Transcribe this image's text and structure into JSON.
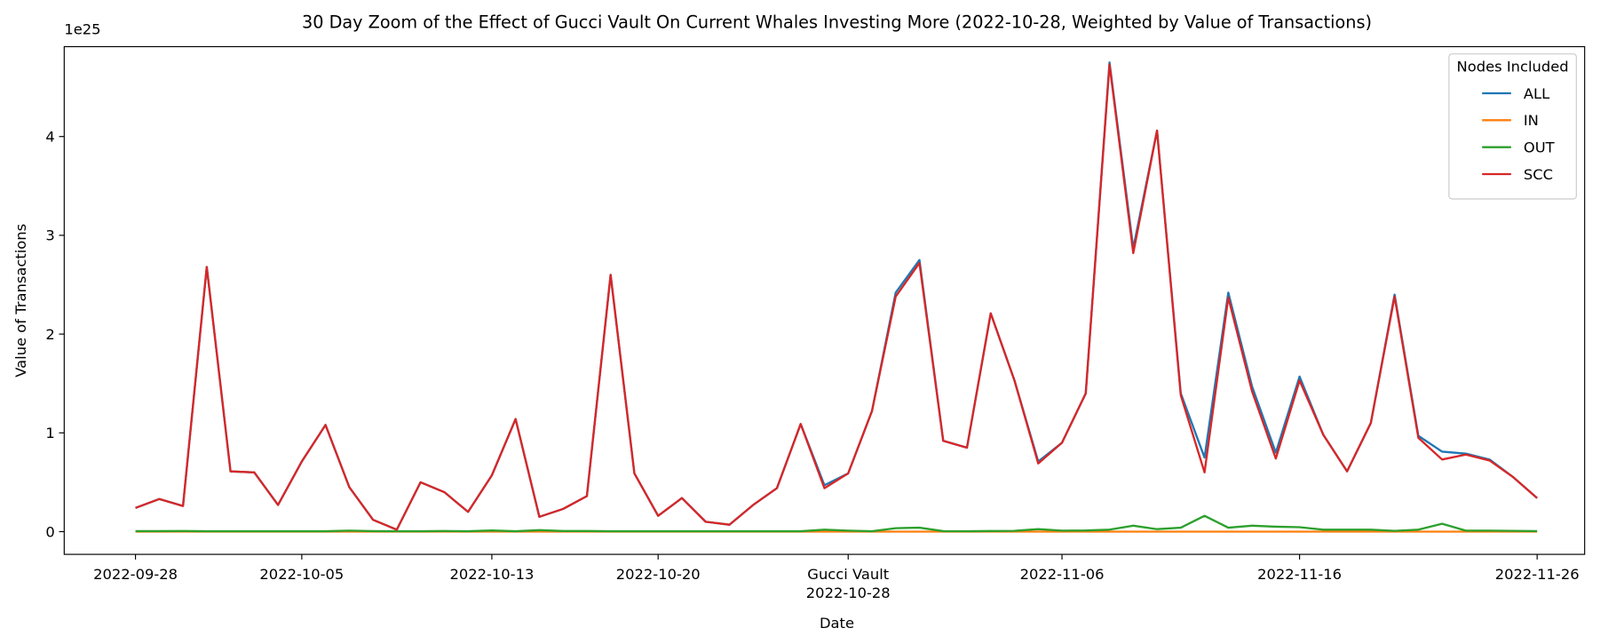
{
  "chart_data": {
    "type": "line",
    "title": "30 Day Zoom of the Effect of Gucci Vault On Current Whales Investing More (2022-10-28, Weighted by Value of Transactions)",
    "xlabel": "Date",
    "ylabel": "Value of Transactions",
    "y_offset_label": "1e25",
    "legend_title": "Nodes Included",
    "legend": "upper right",
    "x_start": "2022-09-28",
    "xlim": [
      "2022-09-25",
      "2022-11-28"
    ],
    "xticks": [
      "2022-09-28",
      "2022-10-05",
      "2022-10-13",
      "2022-10-20",
      "2022-10-28",
      "2022-11-06",
      "2022-11-16",
      "2022-11-26"
    ],
    "annotations": [
      {
        "x": "2022-10-28",
        "text": "Gucci Vault"
      }
    ],
    "ylim": [
      -0.23,
      4.91
    ],
    "yticks": [
      0,
      1,
      2,
      3,
      4
    ],
    "series": [
      {
        "name": "ALL",
        "color": "#1f77b4",
        "values": [
          0.24,
          0.33,
          0.26,
          2.68,
          0.61,
          0.6,
          0.27,
          0.71,
          1.08,
          0.45,
          0.12,
          0.02,
          0.5,
          0.4,
          0.2,
          0.57,
          1.14,
          0.15,
          0.23,
          0.36,
          2.6,
          0.59,
          0.16,
          0.34,
          0.1,
          0.07,
          0.27,
          0.44,
          1.09,
          0.47,
          0.59,
          1.22,
          2.42,
          2.75,
          0.92,
          0.85,
          2.21,
          1.53,
          0.71,
          0.9,
          1.4,
          4.75,
          2.87,
          4.06,
          1.4,
          0.75,
          2.42,
          1.47,
          0.8,
          1.57,
          0.98,
          0.61,
          1.1,
          2.4,
          0.97,
          0.81,
          0.79,
          0.73,
          0.55,
          0.34
        ]
      },
      {
        "name": "IN",
        "color": "#ff7f0e",
        "values": [
          0,
          0,
          0,
          0,
          0,
          0,
          0,
          0,
          0,
          0,
          0,
          0,
          0,
          0,
          0,
          0,
          0,
          0,
          0,
          0,
          0,
          0,
          0,
          0,
          0,
          0,
          0,
          0,
          0,
          0,
          0,
          0,
          0,
          0,
          0,
          0,
          0,
          0,
          0,
          0,
          0,
          0,
          0,
          0,
          0,
          0,
          0,
          0,
          0,
          0,
          0,
          0,
          0,
          0,
          0,
          0,
          0,
          0,
          0,
          0
        ]
      },
      {
        "name": "OUT",
        "color": "#2ca02c",
        "values": [
          0.005,
          0.005,
          0.006,
          0.004,
          0.004,
          0.004,
          0.004,
          0.004,
          0.004,
          0.01,
          0.005,
          0.004,
          0.004,
          0.006,
          0.004,
          0.012,
          0.004,
          0.015,
          0.006,
          0.006,
          0.004,
          0.004,
          0.004,
          0.004,
          0.004,
          0.004,
          0.004,
          0.004,
          0.004,
          0.02,
          0.01,
          0.004,
          0.035,
          0.04,
          0.005,
          0.004,
          0.006,
          0.008,
          0.025,
          0.01,
          0.012,
          0.02,
          0.06,
          0.025,
          0.04,
          0.16,
          0.04,
          0.06,
          0.05,
          0.045,
          0.02,
          0.02,
          0.02,
          0.008,
          0.02,
          0.08,
          0.01,
          0.01,
          0.008,
          0.005
        ]
      },
      {
        "name": "SCC",
        "color": "#d62728",
        "values": [
          0.24,
          0.33,
          0.26,
          2.68,
          0.61,
          0.6,
          0.27,
          0.71,
          1.08,
          0.45,
          0.12,
          0.02,
          0.5,
          0.4,
          0.2,
          0.57,
          1.14,
          0.15,
          0.23,
          0.36,
          2.6,
          0.59,
          0.16,
          0.34,
          0.1,
          0.07,
          0.27,
          0.44,
          1.09,
          0.44,
          0.59,
          1.22,
          2.38,
          2.72,
          0.92,
          0.85,
          2.21,
          1.53,
          0.69,
          0.9,
          1.4,
          4.73,
          2.82,
          4.06,
          1.38,
          0.6,
          2.37,
          1.42,
          0.74,
          1.53,
          0.98,
          0.61,
          1.1,
          2.38,
          0.95,
          0.73,
          0.78,
          0.72,
          0.55,
          0.34
        ]
      }
    ]
  }
}
